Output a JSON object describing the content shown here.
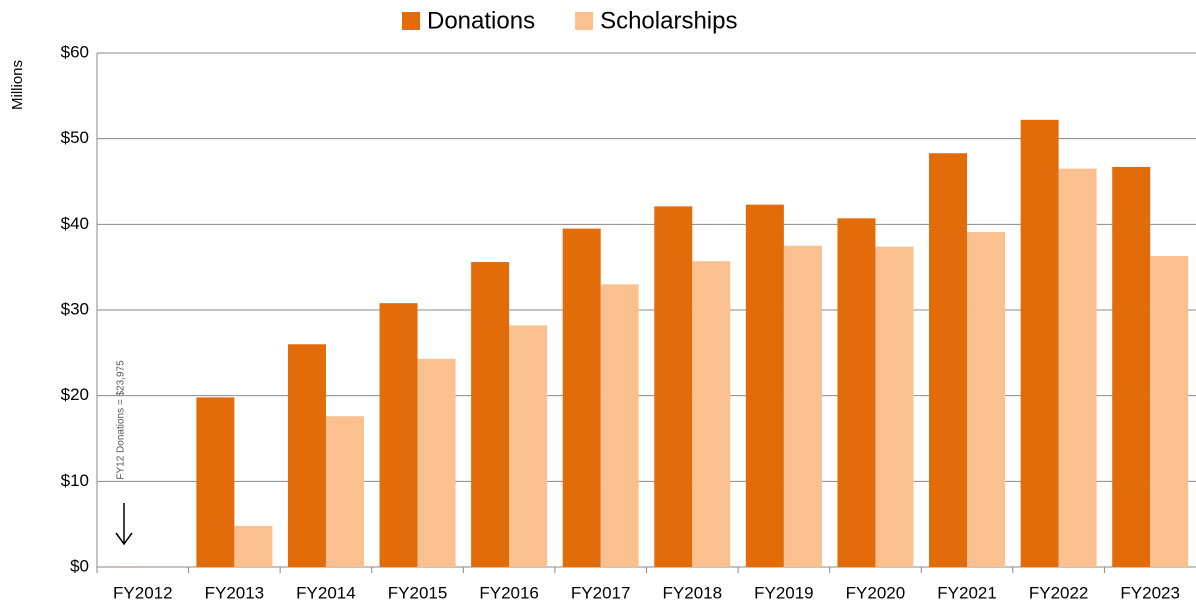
{
  "chart_data": {
    "type": "bar",
    "y_label": "Millions",
    "annotation": "FY12 Donations = $23,975",
    "categories": [
      "FY2012",
      "FY2013",
      "FY2014",
      "FY2015",
      "FY2016",
      "FY2017",
      "FY2018",
      "FY2019",
      "FY2020",
      "FY2021",
      "FY2022",
      "FY2023"
    ],
    "series": [
      {
        "name": "Donations",
        "color": "#e36c0a",
        "values": [
          0.023975,
          19.8,
          26.0,
          30.8,
          35.6,
          39.5,
          42.1,
          42.3,
          40.7,
          48.3,
          52.2,
          46.7
        ]
      },
      {
        "name": "Scholarships",
        "color": "#fac090",
        "values": [
          null,
          4.8,
          17.6,
          24.3,
          28.2,
          33.0,
          35.7,
          37.5,
          37.4,
          39.1,
          46.5,
          36.3
        ]
      }
    ],
    "ylim": [
      0,
      60
    ],
    "yticks": [
      {
        "value": 0,
        "label": "$0"
      },
      {
        "value": 10,
        "label": "$10"
      },
      {
        "value": 20,
        "label": "$20"
      },
      {
        "value": 30,
        "label": "$30"
      },
      {
        "value": 40,
        "label": "$40"
      },
      {
        "value": 50,
        "label": "$50"
      },
      {
        "value": 60,
        "label": "$60"
      }
    ],
    "grid": true,
    "legend": "top"
  }
}
